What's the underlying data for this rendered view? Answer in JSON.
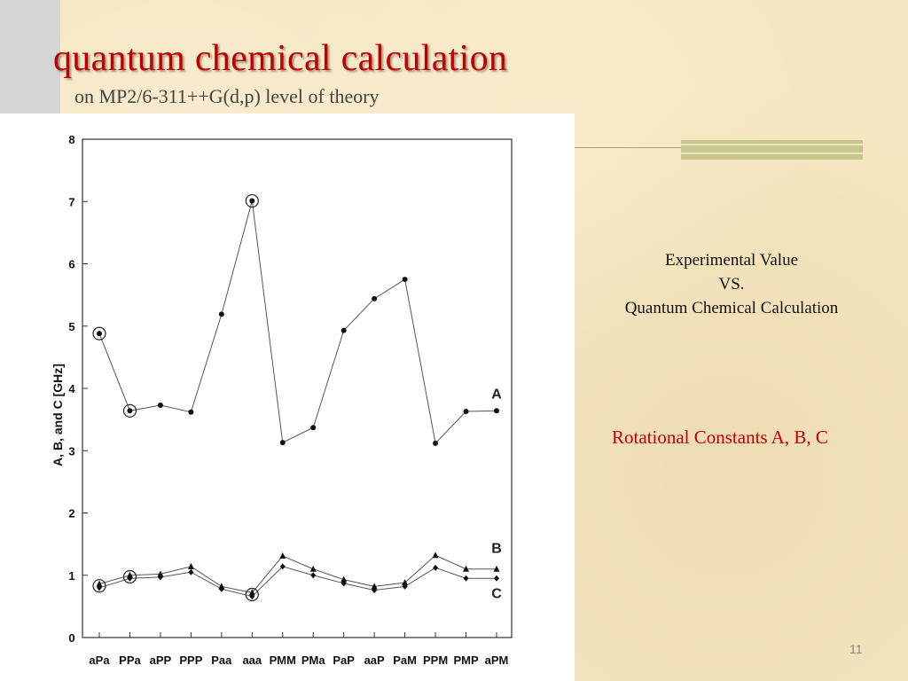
{
  "slide": {
    "title": "quantum chemical calculation",
    "subtitle": "on MP2/6-311++G(d,p) level of theory",
    "comparison_lines": [
      "Experimental Value",
      "VS.",
      "Quantum Chemical Calculation"
    ],
    "rotational_label": "Rotational Constants A, B, C",
    "page_number": "11"
  },
  "chart_data": {
    "type": "line",
    "title": "",
    "xlabel": "",
    "ylabel": "A, B, and C [GHz]",
    "ylim": [
      0,
      8
    ],
    "yticks": [
      0,
      1,
      2,
      3,
      4,
      5,
      6,
      7,
      8
    ],
    "grid": false,
    "categories": [
      "aPa",
      "PPa",
      "aPP",
      "PPP",
      "Paa",
      "aaa",
      "PMM",
      "PMa",
      "PaP",
      "aaP",
      "PaM",
      "PPM",
      "PMP",
      "aPM"
    ],
    "series": [
      {
        "name": "A",
        "marker": "circle",
        "values": [
          4.88,
          3.64,
          3.73,
          3.62,
          5.19,
          7.01,
          3.13,
          3.37,
          4.93,
          5.44,
          5.75,
          3.12,
          3.63,
          3.64
        ]
      },
      {
        "name": "B",
        "marker": "triangle",
        "values": [
          0.86,
          1.0,
          1.02,
          1.14,
          0.82,
          0.72,
          1.31,
          1.1,
          0.93,
          0.82,
          0.88,
          1.32,
          1.1,
          1.1
        ]
      },
      {
        "name": "C",
        "marker": "diamond",
        "values": [
          0.8,
          0.95,
          0.97,
          1.05,
          0.78,
          0.66,
          1.14,
          1.0,
          0.87,
          0.76,
          0.82,
          1.12,
          0.95,
          0.95
        ]
      }
    ],
    "highlighted_points": [
      {
        "series": "A",
        "category": "aPa"
      },
      {
        "series": "A",
        "category": "PPa"
      },
      {
        "series": "A",
        "category": "aaa"
      },
      {
        "series": "B",
        "category": "aPa"
      },
      {
        "series": "B",
        "category": "PPa"
      },
      {
        "series": "B",
        "category": "aaa"
      }
    ]
  }
}
